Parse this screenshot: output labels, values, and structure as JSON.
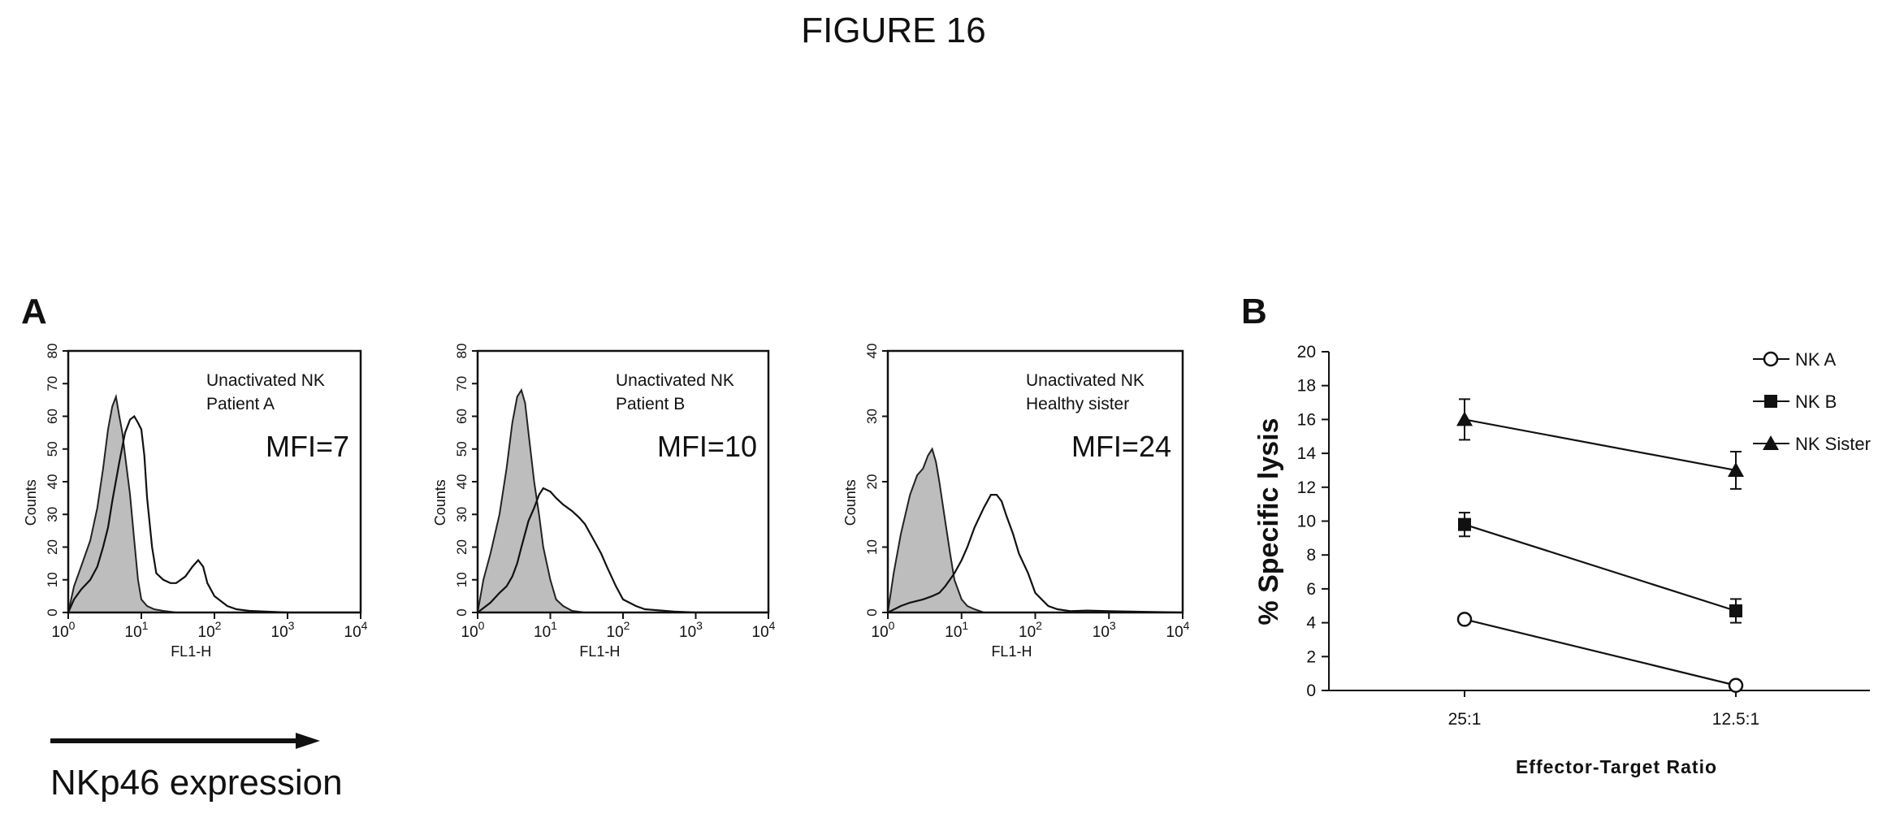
{
  "figure_title": "FIGURE 16",
  "panel_a": {
    "letter": "A",
    "arrow_caption": "NKp46 expression",
    "histograms": [
      {
        "line1": "Unactivated NK",
        "line2": "Patient A",
        "mfi": "MFI=7",
        "ylabel": "Counts",
        "xlabel": "FL1-H",
        "ymax": 80,
        "yticks": [
          "0",
          "10",
          "20",
          "30",
          "40",
          "50",
          "60",
          "70",
          "80"
        ]
      },
      {
        "line1": "Unactivated NK",
        "line2": "Patient B",
        "mfi": "MFI=10",
        "ylabel": "Counts",
        "xlabel": "FL1-H",
        "ymax": 80,
        "yticks": [
          "0",
          "10",
          "20",
          "30",
          "40",
          "50",
          "60",
          "70",
          "80"
        ]
      },
      {
        "line1": "Unactivated NK",
        "line2": "Healthy sister",
        "mfi": "MFI=24",
        "ylabel": "Counts",
        "xlabel": "FL1-H",
        "ymax": 40,
        "yticks": [
          "0",
          "10",
          "20",
          "30",
          "40"
        ]
      }
    ],
    "xtick_exponents": [
      "0",
      "1",
      "2",
      "3",
      "4"
    ]
  },
  "panel_b": {
    "letter": "B"
  },
  "chart_data": [
    {
      "type": "area",
      "title": "Unactivated NK Patient A",
      "annotation": "MFI=7",
      "xlabel": "FL1-H",
      "ylabel": "Counts",
      "xscale": "log",
      "xlim": [
        1,
        10000
      ],
      "ylim": [
        0,
        80
      ],
      "series": [
        {
          "fill": "#bdbdbd",
          "x": [
            1,
            1.2,
            1.5,
            2,
            2.5,
            3,
            3.5,
            4,
            4.5,
            5,
            5.5,
            6,
            7,
            8,
            9,
            10,
            12,
            15,
            20,
            30,
            50,
            100
          ],
          "values": [
            0,
            8,
            14,
            22,
            32,
            44,
            56,
            63,
            66,
            60,
            55,
            48,
            36,
            22,
            10,
            4,
            2,
            1,
            0.5,
            0,
            0,
            0
          ]
        },
        {
          "x": [
            1,
            1.2,
            1.5,
            2,
            2.5,
            3,
            3.5,
            4,
            5,
            6,
            7,
            8,
            9,
            10,
            11,
            12,
            14,
            16,
            20,
            25,
            30,
            40,
            50,
            60,
            70,
            80,
            100,
            150,
            200,
            300,
            500,
            1000,
            10000
          ],
          "values": [
            0,
            4,
            7,
            10,
            14,
            20,
            26,
            34,
            46,
            55,
            59,
            60,
            58,
            56,
            48,
            35,
            20,
            12,
            10,
            9,
            9,
            11,
            14,
            16,
            14,
            9,
            5,
            2,
            1,
            0.5,
            0.3,
            0,
            0
          ]
        }
      ]
    },
    {
      "type": "area",
      "title": "Unactivated NK Patient B",
      "annotation": "MFI=10",
      "xlabel": "FL1-H",
      "ylabel": "Counts",
      "xscale": "log",
      "xlim": [
        1,
        10000
      ],
      "ylim": [
        0,
        80
      ],
      "series": [
        {
          "fill": "#bdbdbd",
          "x": [
            1,
            1.2,
            1.5,
            2,
            2.5,
            3,
            3.5,
            4,
            4.5,
            5,
            6,
            7,
            8,
            10,
            12,
            15,
            20,
            30,
            50
          ],
          "values": [
            0,
            10,
            18,
            30,
            44,
            58,
            66,
            68,
            64,
            55,
            40,
            30,
            20,
            10,
            4,
            2,
            0.5,
            0,
            0
          ]
        },
        {
          "x": [
            1,
            1.5,
            2,
            2.5,
            3,
            3.5,
            4,
            5,
            6,
            7,
            8,
            10,
            12,
            15,
            20,
            25,
            30,
            40,
            50,
            60,
            80,
            100,
            150,
            200,
            500,
            1000,
            10000
          ],
          "values": [
            0,
            3,
            6,
            8,
            11,
            15,
            20,
            28,
            32,
            36,
            38,
            37,
            35,
            33,
            31,
            29,
            27,
            22,
            18,
            14,
            8,
            4,
            2,
            1,
            0.3,
            0,
            0
          ]
        }
      ]
    },
    {
      "type": "area",
      "title": "Unactivated NK Healthy sister",
      "annotation": "MFI=24",
      "xlabel": "FL1-H",
      "ylabel": "Counts",
      "xscale": "log",
      "xlim": [
        1,
        10000
      ],
      "ylim": [
        0,
        40
      ],
      "series": [
        {
          "fill": "#bdbdbd",
          "x": [
            1,
            1.2,
            1.5,
            2,
            2.5,
            3,
            3.5,
            4,
            4.5,
            5,
            6,
            7,
            8,
            10,
            12,
            15,
            20
          ],
          "values": [
            0,
            6,
            12,
            18,
            21,
            22,
            24,
            25,
            23,
            20,
            14,
            9,
            5,
            2,
            1,
            0.5,
            0
          ]
        },
        {
          "x": [
            1,
            1.5,
            2,
            3,
            4,
            5,
            6,
            8,
            10,
            12,
            15,
            20,
            25,
            30,
            35,
            40,
            50,
            60,
            80,
            100,
            150,
            200,
            300,
            500,
            1000,
            10000
          ],
          "values": [
            0,
            1,
            1.5,
            2,
            2.5,
            3,
            4,
            6,
            8,
            10,
            13,
            16,
            18,
            18,
            17,
            15,
            12,
            9,
            6,
            3,
            1,
            0.5,
            0.2,
            0.3,
            0.2,
            0
          ]
        }
      ]
    },
    {
      "type": "line",
      "xlabel": "Effector-Target Ratio",
      "ylabel": "% Specific lysis",
      "ylim": [
        0,
        20
      ],
      "yticks": [
        0,
        2,
        4,
        6,
        8,
        10,
        12,
        14,
        16,
        18,
        20
      ],
      "categories": [
        "25:1",
        "12.5:1"
      ],
      "legend_position": "top-right",
      "series": [
        {
          "name": "NK A",
          "marker": "circle-open",
          "values": [
            4.2,
            0.3
          ],
          "errors": [
            0.2,
            0.2
          ]
        },
        {
          "name": "NK B",
          "marker": "square-filled",
          "values": [
            9.8,
            4.7
          ],
          "errors": [
            0.7,
            0.7
          ]
        },
        {
          "name": "NK Sister",
          "marker": "triangle-filled",
          "values": [
            16.0,
            13.0
          ],
          "errors": [
            1.2,
            1.1
          ]
        }
      ]
    }
  ]
}
